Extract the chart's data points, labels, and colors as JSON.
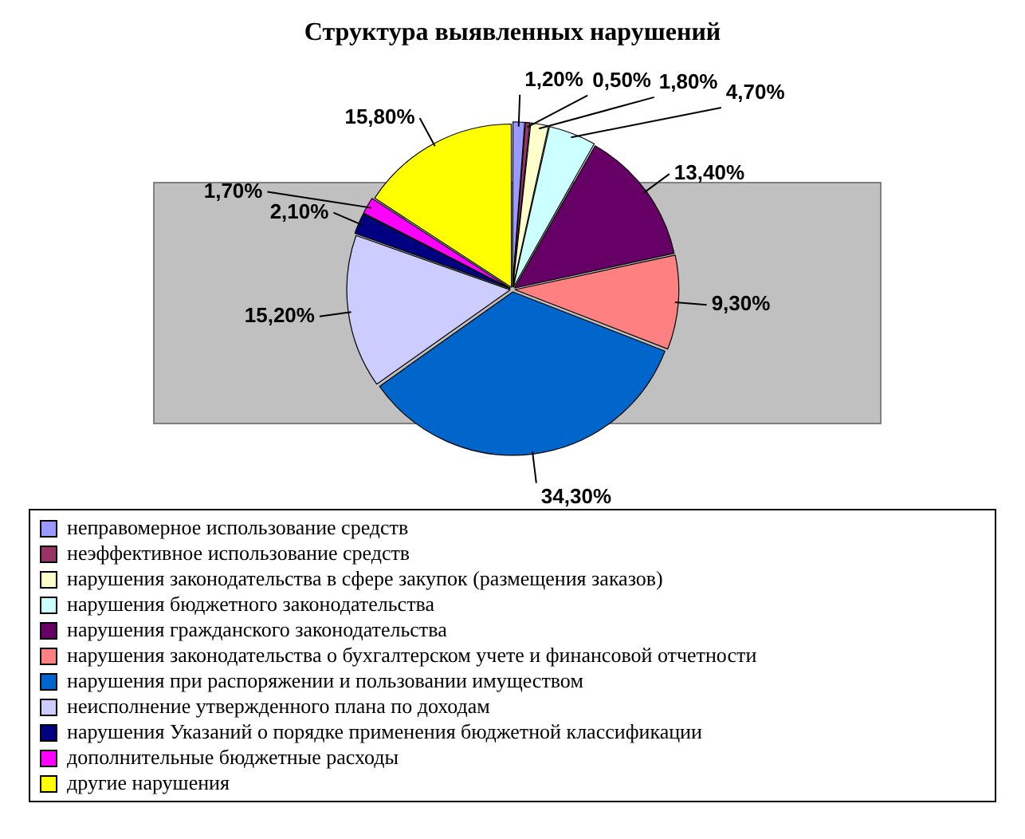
{
  "chart_data": {
    "type": "pie",
    "title": "Структура выявленных нарушений",
    "categories": [
      "неправомерное использование средств",
      "неэффективное использование средств",
      "нарушения законодательства в сфере закупок (размещения заказов)",
      "нарушения бюджетного законодательства",
      "нарушения гражданского законодательства",
      "нарушения законодательства о бухгалтерском учете и финансовой отчетности",
      "нарушения при распоряжении и пользовании имуществом",
      "неисполнение утвержденного плана по доходам",
      "нарушения Указаний о порядке применения бюджетной классификации",
      "дополнительные бюджетные расходы",
      "другие нарушения"
    ],
    "values": [
      1.2,
      0.5,
      1.8,
      4.7,
      13.4,
      9.3,
      34.3,
      15.2,
      2.1,
      1.7,
      15.8
    ],
    "value_labels": [
      "1,20%",
      "0,50%",
      "1,80%",
      "4,70%",
      "13,40%",
      "9,30%",
      "34,30%",
      "15,20%",
      "2,10%",
      "1,70%",
      "15,80%"
    ],
    "colors": [
      "#9999ff",
      "#993366",
      "#ffffcc",
      "#ccffff",
      "#660066",
      "#ff8080",
      "#0066cc",
      "#ccccff",
      "#000080",
      "#ff00ff",
      "#ffff00"
    ],
    "legend": "bottom"
  }
}
